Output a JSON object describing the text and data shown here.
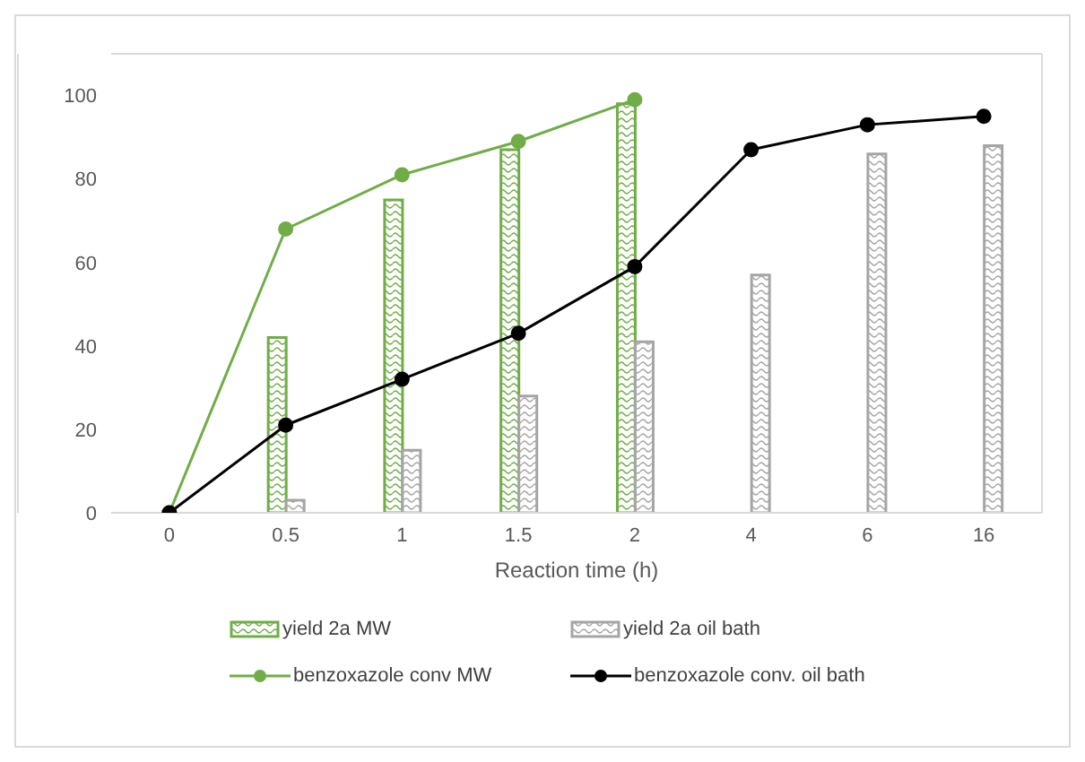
{
  "chart_data": {
    "type": "bar",
    "xlabel": "Reaction time (h)",
    "categories": [
      "0",
      "0.5",
      "1",
      "1.5",
      "2",
      "4",
      "6",
      "16"
    ],
    "series": [
      {
        "name": "yield 2a MW",
        "color": "#70ad47",
        "values": [
          null,
          42,
          75,
          87,
          98,
          null,
          null,
          null
        ]
      },
      {
        "name": "yield 2a oil bath",
        "color": "#a5a5a5",
        "values": [
          null,
          3,
          15,
          28,
          41,
          57,
          86,
          88
        ]
      },
      {
        "name": "benzoxazole conv MW",
        "type": "line",
        "color": "#70ad47",
        "values": [
          0,
          68,
          81,
          89,
          99,
          null,
          null,
          null
        ]
      },
      {
        "name": "benzoxazole conv. oil bath",
        "type": "line",
        "color": "#000000",
        "values": [
          0,
          21,
          32,
          43,
          59,
          87,
          93,
          95
        ]
      }
    ],
    "ylim": [
      0,
      110
    ],
    "yticks": [
      0,
      20,
      40,
      60,
      80,
      100
    ],
    "grid": false,
    "legend": "bottom",
    "marker": "circle",
    "line_style": "solid"
  }
}
